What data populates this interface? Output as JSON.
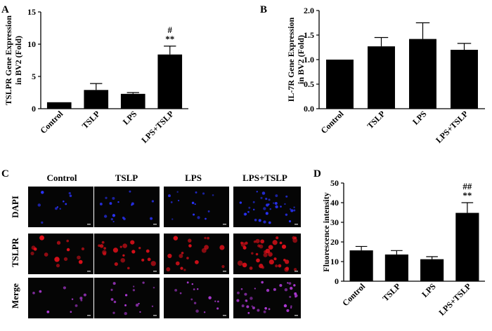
{
  "colors": {
    "bar": "#000000",
    "axis": "#000000",
    "micro_bg": "#050505",
    "dapi_dot": "#2a33ff",
    "tslpr_dot": "#e0101a",
    "merge_dot": "#b03ad8"
  },
  "panels": {
    "A": {
      "letter": "A"
    },
    "B": {
      "letter": "B"
    },
    "C": {
      "letter": "C",
      "columns": [
        "Control",
        "TSLP",
        "LPS",
        "LPS+TSLP"
      ],
      "rows": [
        "DAPI",
        "TSLPR",
        "Merge"
      ]
    },
    "D": {
      "letter": "D"
    }
  },
  "chart_data": [
    {
      "panel": "A",
      "type": "bar",
      "categories": [
        "Control",
        "TSLP",
        "LPS",
        "LPS+TSLP"
      ],
      "values": [
        1.0,
        2.9,
        2.3,
        8.4
      ],
      "errors": [
        0,
        1.0,
        0.2,
        1.3
      ],
      "ylabel_lines": [
        "TSLPR Gene Expression",
        "in BV2 (Fold)"
      ],
      "ylim": [
        0,
        15
      ],
      "yticks": [
        0,
        5,
        10,
        15
      ],
      "ytick_labels": [
        "0",
        "5",
        "10",
        "15"
      ],
      "annotations": [
        {
          "index": 3,
          "lines": [
            "#",
            "**"
          ]
        }
      ]
    },
    {
      "panel": "B",
      "type": "bar",
      "categories": [
        "Control",
        "TSLP",
        "LPS",
        "LPS+TSLP"
      ],
      "values": [
        1.0,
        1.27,
        1.42,
        1.2
      ],
      "errors": [
        0,
        0.18,
        0.33,
        0.13
      ],
      "ylabel_lines": [
        "IL-7R Gene Expression",
        "in BV2 (Fold)"
      ],
      "ylim": [
        0,
        2.0
      ],
      "yticks": [
        0,
        0.5,
        1.0,
        1.5,
        2.0
      ],
      "ytick_labels": [
        "0.0",
        "0.5",
        "1.0",
        "1.5",
        "2.0"
      ],
      "annotations": []
    },
    {
      "panel": "D",
      "type": "bar",
      "categories": [
        "Control",
        "TSLP",
        "LPS",
        "LPS+TSLP"
      ],
      "values": [
        15.7,
        13.6,
        11.2,
        34.8
      ],
      "errors": [
        2.0,
        2.0,
        1.3,
        5.2
      ],
      "ylabel_lines": [
        "Fluorescence intensity"
      ],
      "ylim": [
        0,
        50
      ],
      "yticks": [
        0,
        10,
        20,
        30,
        40,
        50
      ],
      "ytick_labels": [
        "0",
        "10",
        "20",
        "30",
        "40",
        "50"
      ],
      "annotations": [
        {
          "index": 3,
          "lines": [
            "##",
            "**"
          ]
        }
      ]
    }
  ]
}
